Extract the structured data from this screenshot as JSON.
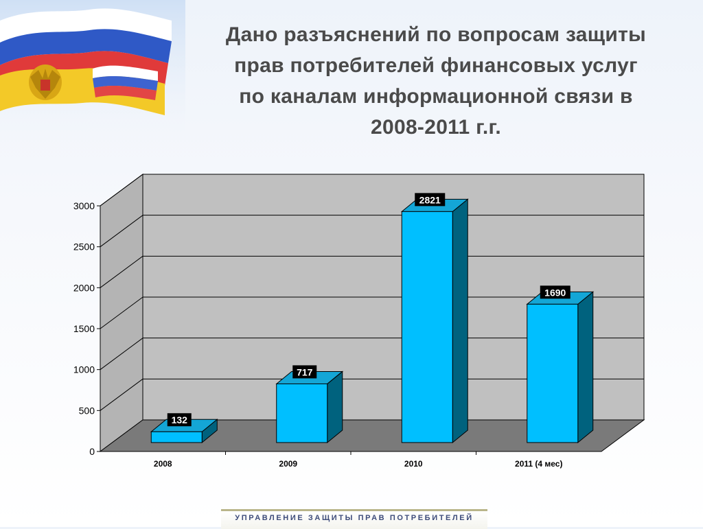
{
  "slide": {
    "title_lines": [
      "Дано разъяснений по вопросам защиты",
      "прав потребителей финансовых услуг",
      "по каналам информационной связи в",
      "2008-2011 г.г."
    ],
    "footer": "УПРАВЛЕНИЕ ЗАЩИТЫ ПРАВ ПОТРЕБИТЕЛЕЙ"
  },
  "chart_data": {
    "type": "bar",
    "categories": [
      "2008",
      "2009",
      "2010",
      "2011 (4 мес)"
    ],
    "values": [
      132,
      717,
      2821,
      1690
    ],
    "data_labels": [
      "132",
      "717",
      "2821",
      "1690"
    ],
    "yticks": [
      "0",
      "500",
      "1000",
      "1500",
      "2000",
      "2500",
      "3000"
    ],
    "ylim": [
      0,
      3000
    ],
    "grid": true,
    "legend": "none",
    "colors": {
      "bar_front": "#00bfff",
      "bar_top": "#14a6d6",
      "bar_side": "#00627e",
      "back_wall": "#c0c0c0",
      "side_wall": "#b4b4b4",
      "floor": "#7a7a7a",
      "label_bg": "#000000",
      "label_text": "#ffffff"
    }
  }
}
